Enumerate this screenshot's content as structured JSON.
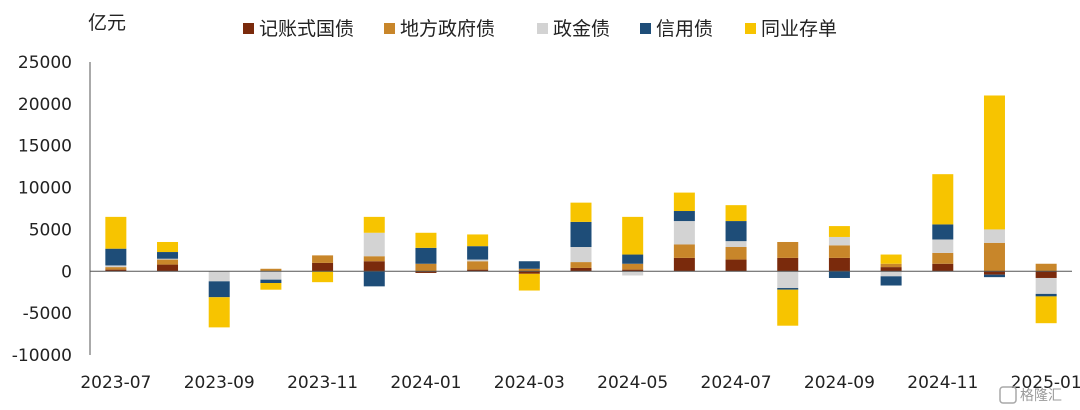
{
  "chart_data": {
    "type": "bar",
    "stacked": true,
    "unit_label": "亿元",
    "categories": [
      "2023-07",
      "2023-08",
      "2023-09",
      "2023-10",
      "2023-11",
      "2023-12",
      "2024-01",
      "2024-02",
      "2024-03",
      "2024-04",
      "2024-05",
      "2024-06",
      "2024-07",
      "2024-08",
      "2024-09",
      "2024-10",
      "2024-11",
      "2024-12",
      "2025-01"
    ],
    "x_tick_labels": [
      "2023-07",
      "2023-09",
      "2023-11",
      "2024-01",
      "2024-03",
      "2024-05",
      "2024-07",
      "2024-09",
      "2024-11",
      "2025-01"
    ],
    "ylim": [
      -10000,
      25000
    ],
    "y_ticks": [
      -10000,
      -5000,
      0,
      5000,
      10000,
      15000,
      20000,
      25000
    ],
    "grid": false,
    "legend_position": "top",
    "series": [
      {
        "name": "记账式国债",
        "color": "#7a2a0c",
        "values": [
          200,
          800,
          0,
          0,
          1000,
          1200,
          -200,
          200,
          -300,
          400,
          200,
          1600,
          1400,
          1600,
          1600,
          500,
          900,
          -400,
          -800
        ]
      },
      {
        "name": "地方政府债",
        "color": "#c8862a",
        "values": [
          300,
          600,
          0,
          300,
          900,
          600,
          900,
          1000,
          300,
          700,
          700,
          1600,
          1500,
          1900,
          1500,
          400,
          1300,
          3400,
          900
        ]
      },
      {
        "name": "政金债",
        "color": "#d3d3d3",
        "values": [
          200,
          100,
          -1200,
          -1000,
          0,
          2800,
          0,
          200,
          0,
          1800,
          -500,
          2800,
          700,
          -2000,
          1000,
          -600,
          1600,
          1600,
          -1900
        ]
      },
      {
        "name": "信用债",
        "color": "#1e4d78",
        "values": [
          2000,
          800,
          -1900,
          -400,
          0,
          -1800,
          1900,
          1600,
          900,
          3000,
          1100,
          1200,
          2400,
          -200,
          -800,
          -1100,
          1800,
          -300,
          -300
        ]
      },
      {
        "name": "同业存单",
        "color": "#f7c400",
        "values": [
          3800,
          1200,
          -3600,
          -800,
          -1300,
          1900,
          1800,
          1400,
          -2000,
          2300,
          4500,
          2200,
          1900,
          -4300,
          1300,
          1100,
          6000,
          16000,
          -3200
        ]
      }
    ]
  },
  "watermark": {
    "text": "格隆汇"
  }
}
